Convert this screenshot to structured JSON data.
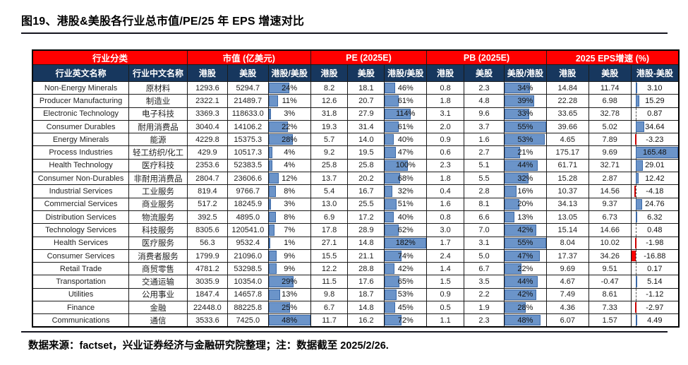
{
  "page": {
    "title": "图19、港股&美股各行业总市值/PE/25 年 EPS 增速对比",
    "source_note": "数据来源：factset，兴业证券经济与金融研究院整理；注：数据截至 2025/2/26."
  },
  "colors": {
    "group_header_bg": "#FF0000",
    "sub_header_bg": "#17375E",
    "header_text": "#FFFFFF",
    "data_bar_blue": "#6B94C9",
    "data_bar_blue_border": "#3A68A6",
    "data_bar_negative_red": "#FF0000",
    "grid_line": "#1A1A1A"
  },
  "table": {
    "group_headers": [
      {
        "label": "行业分类",
        "span": 2
      },
      {
        "label": "市值 (亿美元)",
        "span": 3
      },
      {
        "label": "PE (2025E)",
        "span": 3
      },
      {
        "label": "PB (2025E)",
        "span": 3
      },
      {
        "label": "2025 EPS增速 (%)",
        "span": 3
      }
    ],
    "sub_headers": [
      "行业英文名称",
      "行业中文名称",
      "港股",
      "美股",
      "港股/美股",
      "港股",
      "美股",
      "港股/美股",
      "港股",
      "美股",
      "美股/港股",
      "港股",
      "美股",
      "港股-美股"
    ],
    "rows": [
      [
        "Non-Energy Minerals",
        "原材料",
        "1293.6",
        "5294.7",
        "24%",
        "8.2",
        "18.1",
        "46%",
        "0.8",
        "2.3",
        "34%",
        "14.84",
        "11.74",
        "3.10"
      ],
      [
        "Producer Manufacturing",
        "制造业",
        "2322.1",
        "21489.7",
        "11%",
        "12.6",
        "20.7",
        "61%",
        "1.8",
        "4.8",
        "39%",
        "22.28",
        "6.98",
        "15.29"
      ],
      [
        "Electronic Technology",
        "电子科技",
        "3369.3",
        "118633.0",
        "3%",
        "31.8",
        "27.9",
        "114%",
        "3.1",
        "9.6",
        "33%",
        "33.65",
        "32.78",
        "0.87"
      ],
      [
        "Consumer Durables",
        "耐用消费品",
        "3040.4",
        "14106.2",
        "22%",
        "19.3",
        "31.4",
        "61%",
        "2.0",
        "3.7",
        "55%",
        "39.66",
        "5.02",
        "34.64"
      ],
      [
        "Energy Minerals",
        "能源",
        "4229.8",
        "15375.3",
        "28%",
        "5.7",
        "14.0",
        "40%",
        "0.9",
        "1.6",
        "53%",
        "4.65",
        "7.89",
        "-3.23"
      ],
      [
        "Process Industries",
        "轻工纺织/化工",
        "429.9",
        "10517.3",
        "4%",
        "9.2",
        "19.5",
        "47%",
        "0.6",
        "2.7",
        "21%",
        "175.17",
        "9.69",
        "165.48"
      ],
      [
        "Health Technology",
        "医疗科技",
        "2353.6",
        "52383.5",
        "4%",
        "25.8",
        "25.8",
        "100%",
        "2.3",
        "5.1",
        "44%",
        "61.71",
        "32.71",
        "29.01"
      ],
      [
        "Consumer Non-Durables",
        "非耐用消费品",
        "2804.7",
        "23606.6",
        "12%",
        "13.7",
        "20.2",
        "68%",
        "1.8",
        "5.5",
        "32%",
        "15.28",
        "2.87",
        "12.42"
      ],
      [
        "Industrial Services",
        "工业服务",
        "819.4",
        "9766.7",
        "8%",
        "5.4",
        "16.7",
        "32%",
        "0.4",
        "2.8",
        "16%",
        "10.37",
        "14.56",
        "-4.18"
      ],
      [
        "Commercial Services",
        "商业服务",
        "517.2",
        "18245.9",
        "3%",
        "13.0",
        "25.5",
        "51%",
        "1.6",
        "8.1",
        "20%",
        "34.13",
        "9.37",
        "24.76"
      ],
      [
        "Distribution Services",
        "物流服务",
        "392.5",
        "4895.0",
        "8%",
        "6.9",
        "17.2",
        "40%",
        "0.8",
        "6.6",
        "13%",
        "13.05",
        "6.73",
        "6.32"
      ],
      [
        "Technology Services",
        "科技服务",
        "8305.6",
        "120541.0",
        "7%",
        "17.8",
        "28.9",
        "62%",
        "3.0",
        "7.0",
        "42%",
        "15.14",
        "14.66",
        "0.48"
      ],
      [
        "Health Services",
        "医疗服务",
        "56.3",
        "9532.4",
        "1%",
        "27.1",
        "14.8",
        "182%",
        "1.7",
        "3.1",
        "55%",
        "8.04",
        "10.02",
        "-1.98"
      ],
      [
        "Consumer Services",
        "消费者服务",
        "1799.9",
        "21096.0",
        "9%",
        "15.5",
        "21.1",
        "74%",
        "2.4",
        "5.0",
        "47%",
        "17.37",
        "34.26",
        "-16.88"
      ],
      [
        "Retail Trade",
        "商贸零售",
        "4781.2",
        "53298.5",
        "9%",
        "12.2",
        "28.8",
        "42%",
        "1.4",
        "6.7",
        "22%",
        "9.69",
        "9.51",
        "0.17"
      ],
      [
        "Transportation",
        "交通运输",
        "3035.9",
        "10354.0",
        "29%",
        "11.5",
        "17.6",
        "65%",
        "1.5",
        "3.5",
        "44%",
        "4.67",
        "-0.47",
        "5.14"
      ],
      [
        "Utilities",
        "公用事业",
        "1847.4",
        "14657.8",
        "13%",
        "9.8",
        "18.7",
        "53%",
        "0.9",
        "2.2",
        "42%",
        "7.49",
        "8.61",
        "-1.12"
      ],
      [
        "Finance",
        "金融",
        "22448.0",
        "88225.8",
        "25%",
        "6.7",
        "14.8",
        "45%",
        "0.5",
        "1.9",
        "28%",
        "4.36",
        "7.33",
        "-2.97"
      ],
      [
        "Communications",
        "通信",
        "3533.6",
        "7425.0",
        "48%",
        "11.7",
        "16.2",
        "72%",
        "1.1",
        "2.3",
        "48%",
        "6.07",
        "1.57",
        "4.49"
      ]
    ]
  }
}
